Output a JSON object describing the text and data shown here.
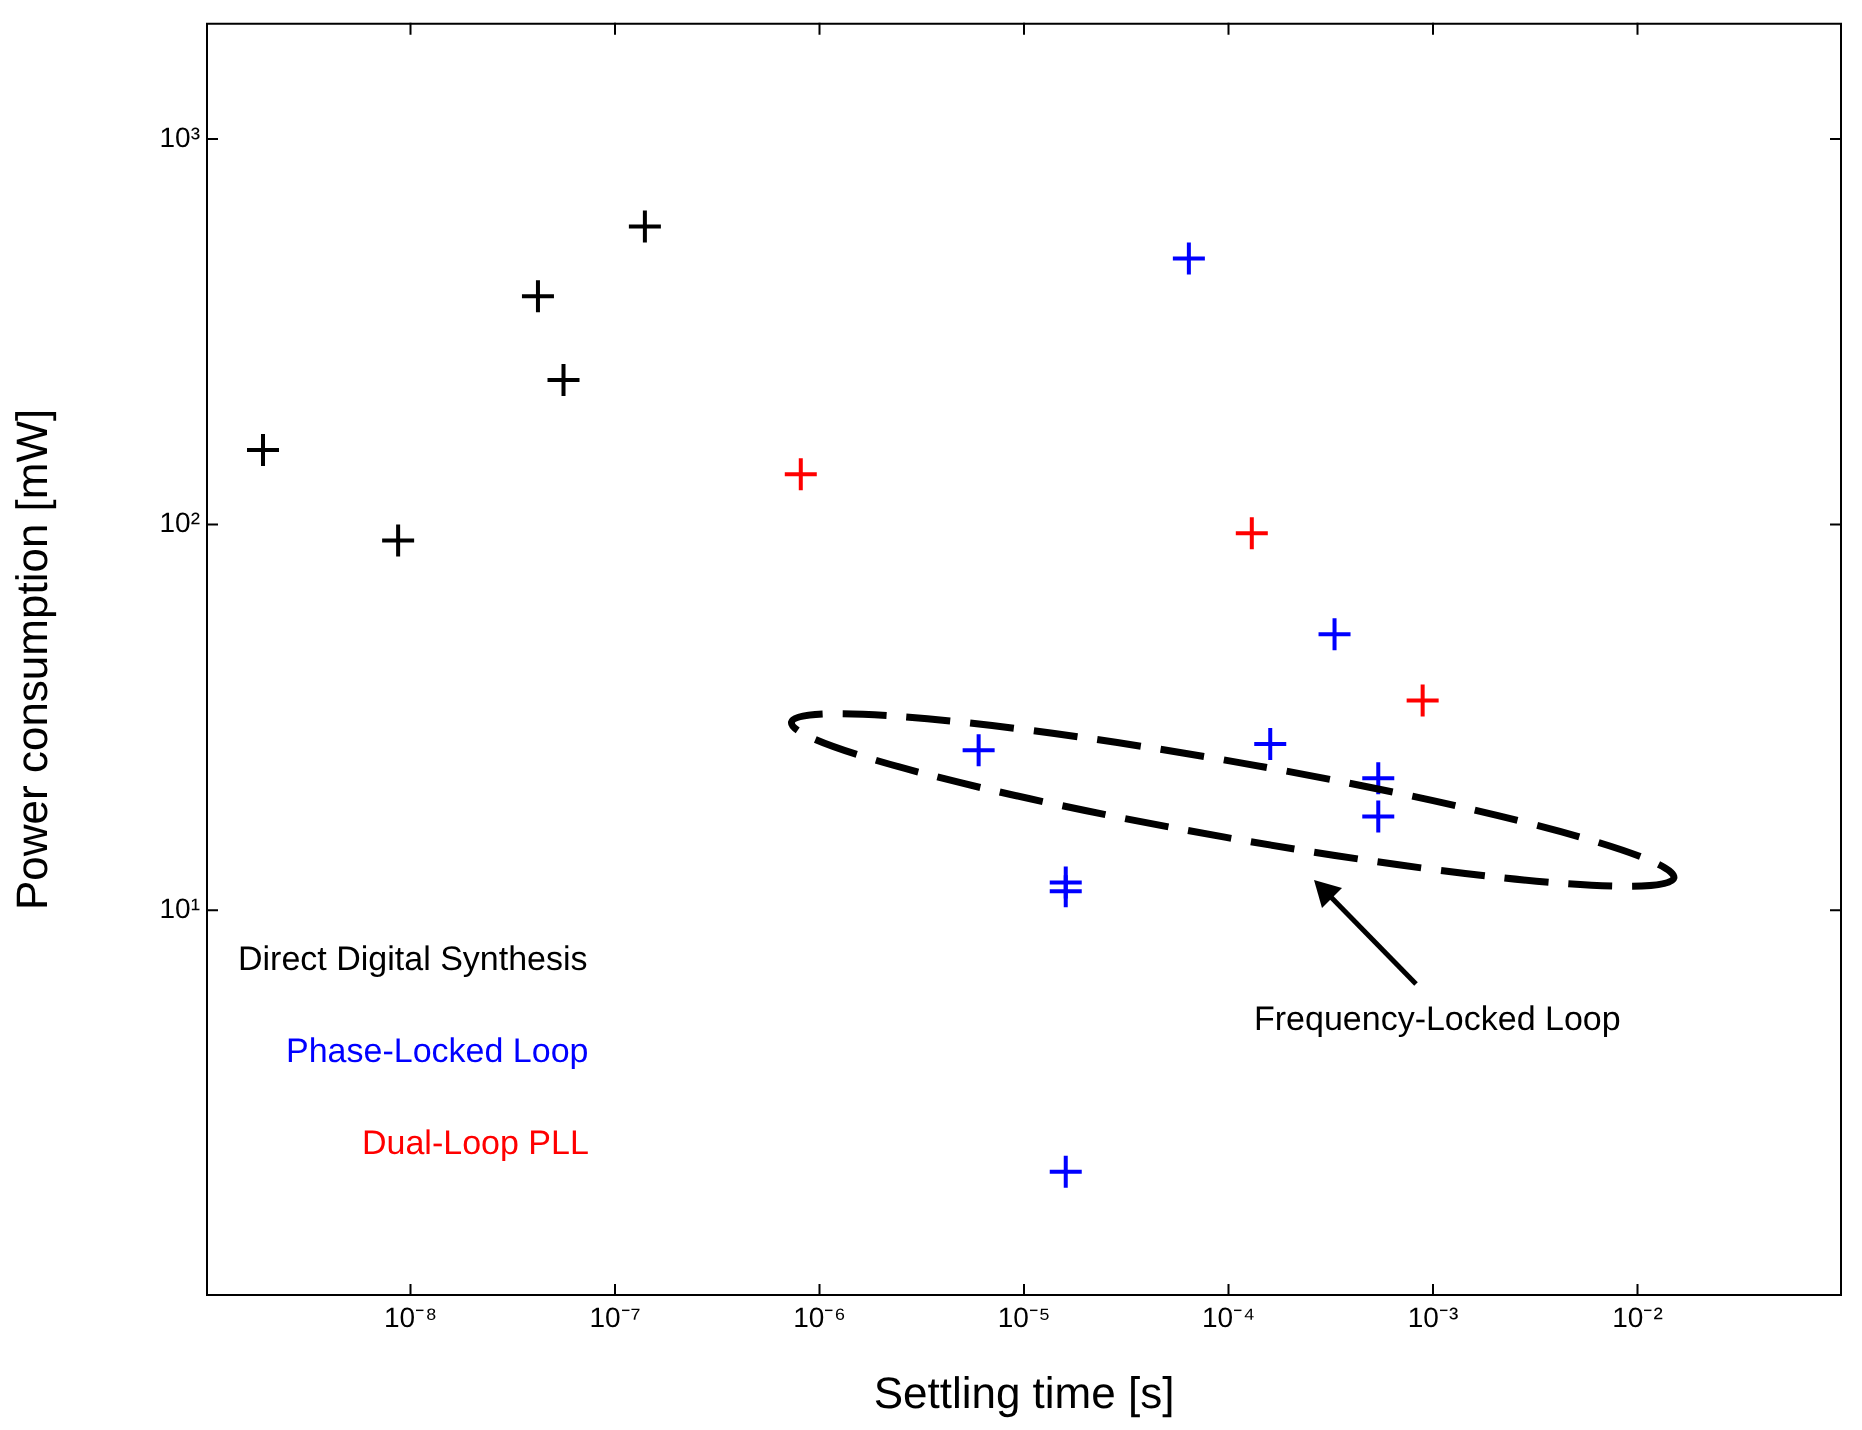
{
  "chart_data": {
    "type": "scatter",
    "xlabel": "Settling time [s]",
    "ylabel": "Power consumption [mW]",
    "log": "xy",
    "marker": "cross",
    "legend": "bottom left",
    "xlim": [
      1e-09,
      0.1
    ],
    "ylim": [
      1,
      2000
    ],
    "xticks": [
      {
        "value": 1e-08,
        "label": "10⁻⁸"
      },
      {
        "value": 1e-07,
        "label": "10⁻⁷"
      },
      {
        "value": 1e-06,
        "label": "10⁻⁶"
      },
      {
        "value": 1e-05,
        "label": "10⁻⁵"
      },
      {
        "value": 0.0001,
        "label": "10⁻⁴"
      },
      {
        "value": 0.001,
        "label": "10⁻³"
      },
      {
        "value": 0.01,
        "label": "10⁻²"
      }
    ],
    "yticks": [
      {
        "value": 10,
        "label": "10¹"
      },
      {
        "value": 100,
        "label": "10²"
      },
      {
        "value": 1000,
        "label": "10³"
      }
    ],
    "series": [
      {
        "name": "Direct Digital Synthesis",
        "color": "#000000",
        "x": [
          1.9e-09,
          8.7e-09,
          4.2e-08,
          5.6e-08,
          1.4e-07
        ],
        "values": [
          156,
          91,
          391,
          237,
          593
        ]
      },
      {
        "name": "Phase-Locked Loop",
        "color": "#0000ff",
        "x": [
          6.4e-05,
          0.00033,
          0.00016,
          6e-06,
          0.00054,
          0.00054,
          1.6e-05,
          1.6e-05,
          1.6e-05
        ],
        "values": [
          490,
          52,
          27,
          26,
          22,
          17.5,
          11.8,
          11.2,
          2.1
        ]
      },
      {
        "name": "Dual-Loop PLL",
        "color": "#ff0000",
        "x": [
          8.1e-07,
          0.00013,
          0.00089
        ],
        "values": [
          135,
          95,
          35
        ]
      }
    ],
    "annotations": [
      "Frequency-Locked Loop"
    ]
  }
}
